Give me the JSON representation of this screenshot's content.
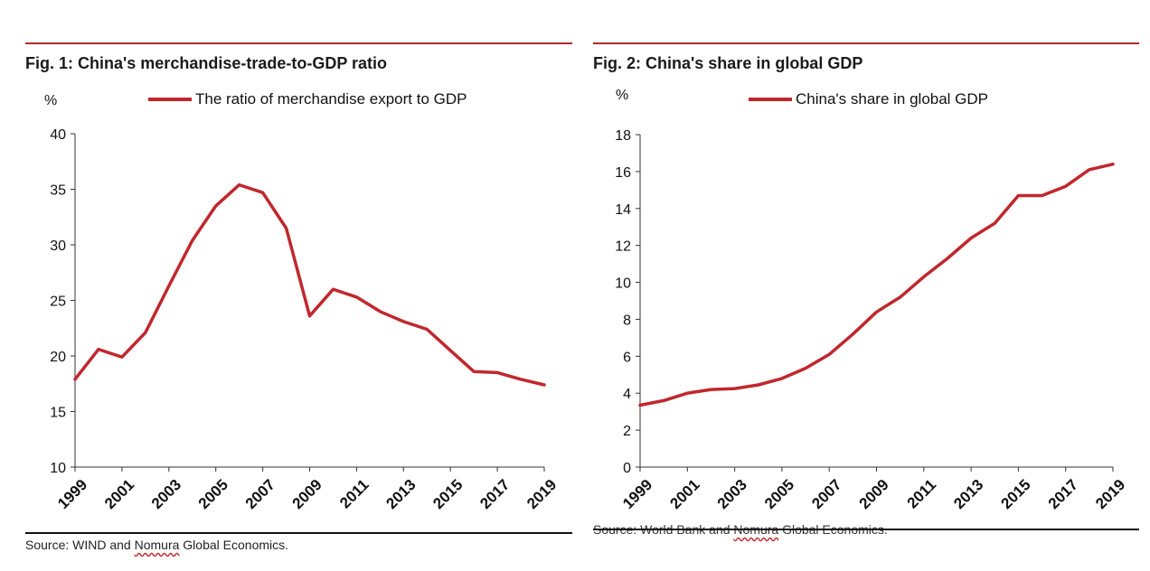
{
  "figures": [
    {
      "title": "Fig. 1: China's merchandise-trade-to-GDP ratio",
      "unit": "%",
      "source_pre": "Source: WIND and ",
      "source_mid": "Nomura",
      "source_post": " Global Economics."
    },
    {
      "title": "Fig. 2: China's share in global GDP",
      "unit": "%",
      "source_pre": "Source: World Bank and ",
      "source_mid": "Nomura",
      "source_post": " Global Economics."
    }
  ],
  "colors": {
    "accent": "#c1272d",
    "rule": "#b22b2b"
  },
  "chart_data": [
    {
      "type": "line",
      "title": "Fig. 1: China's merchandise-trade-to-GDP ratio",
      "ylabel": "%",
      "xlabel": "",
      "x": [
        1999,
        2000,
        2001,
        2002,
        2003,
        2004,
        2005,
        2006,
        2007,
        2008,
        2009,
        2010,
        2011,
        2012,
        2013,
        2014,
        2015,
        2016,
        2017,
        2018,
        2019
      ],
      "x_tick_labels": [
        "1999",
        "2001",
        "2003",
        "2005",
        "2007",
        "2009",
        "2011",
        "2013",
        "2015",
        "2017",
        "2019"
      ],
      "y_ticks": [
        10,
        15,
        20,
        25,
        30,
        35,
        40
      ],
      "ylim": [
        10,
        40
      ],
      "legend_position": "top",
      "grid": false,
      "series": [
        {
          "name": "The ratio of merchandise export to GDP",
          "values": [
            17.9,
            20.6,
            19.9,
            22.1,
            26.3,
            30.4,
            33.5,
            35.4,
            34.7,
            31.5,
            23.6,
            26.0,
            25.3,
            24.0,
            23.1,
            22.4,
            20.5,
            18.6,
            18.5,
            17.9,
            17.4
          ]
        }
      ]
    },
    {
      "type": "line",
      "title": "Fig. 2: China's share in global GDP",
      "ylabel": "%",
      "xlabel": "",
      "x": [
        1999,
        2000,
        2001,
        2002,
        2003,
        2004,
        2005,
        2006,
        2007,
        2008,
        2009,
        2010,
        2011,
        2012,
        2013,
        2014,
        2015,
        2016,
        2017,
        2018,
        2019
      ],
      "x_tick_labels": [
        "1999",
        "2001",
        "2003",
        "2005",
        "2007",
        "2009",
        "2011",
        "2013",
        "2015",
        "2017",
        "2019"
      ],
      "y_ticks": [
        0,
        2,
        4,
        6,
        8,
        10,
        12,
        14,
        16,
        18
      ],
      "ylim": [
        0,
        18
      ],
      "legend_position": "top",
      "grid": false,
      "series": [
        {
          "name": "China's share in global GDP",
          "values": [
            3.35,
            3.6,
            4.0,
            4.2,
            4.25,
            4.45,
            4.8,
            5.35,
            6.1,
            7.2,
            8.4,
            9.2,
            10.3,
            11.3,
            12.4,
            13.2,
            14.7,
            14.7,
            15.2,
            16.1,
            16.4
          ]
        }
      ]
    }
  ]
}
